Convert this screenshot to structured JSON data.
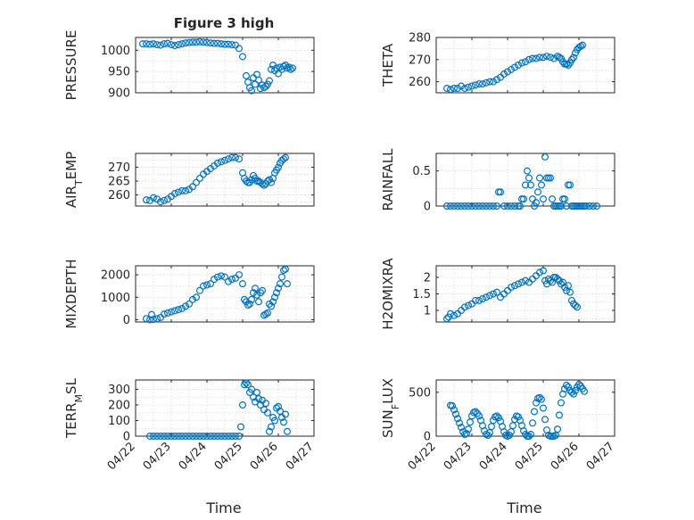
{
  "figure_title": "Figure 3 high",
  "colors": {
    "marker": "#0072BD",
    "axis": "#262626",
    "grid": "#d9d9d9",
    "background": "#ffffff"
  },
  "chart_data": [
    {
      "type": "scatter",
      "name": "pressure",
      "ylabel": "PRESSURE",
      "xlabel": "",
      "xlim": [
        0,
        5
      ],
      "ylim": [
        900,
        1030
      ],
      "yticks": [
        900,
        950,
        1000
      ],
      "xticks_visible": false,
      "x": [
        0.2,
        0.3,
        0.4,
        0.5,
        0.6,
        0.7,
        0.8,
        0.9,
        1.0,
        1.1,
        1.2,
        1.3,
        1.4,
        1.5,
        1.6,
        1.7,
        1.8,
        1.9,
        2.0,
        2.1,
        2.2,
        2.3,
        2.4,
        2.5,
        2.6,
        2.7,
        2.8,
        2.9,
        3.0,
        3.1,
        3.15,
        3.2,
        3.25,
        3.3,
        3.35,
        3.4,
        3.45,
        3.5,
        3.55,
        3.6,
        3.65,
        3.7,
        3.75,
        3.8,
        3.85,
        3.9,
        3.95,
        4.0,
        4.05,
        4.1,
        4.15,
        4.2,
        4.25,
        4.3,
        4.35,
        4.4
      ],
      "y": [
        1015,
        1015,
        1014,
        1015,
        1013,
        1012,
        1015,
        1016,
        1013,
        1011,
        1013,
        1015,
        1017,
        1018,
        1019,
        1019,
        1020,
        1019,
        1018,
        1017,
        1016,
        1016,
        1015,
        1014,
        1014,
        1013,
        1012,
        1004,
        985,
        940,
        925,
        912,
        905,
        935,
        920,
        943,
        930,
        910,
        918,
        912,
        915,
        920,
        928,
        955,
        965,
        952,
        958,
        945,
        960,
        955,
        962,
        965,
        958,
        960,
        955,
        958
      ]
    },
    {
      "type": "scatter",
      "name": "theta",
      "ylabel": "THETA",
      "xlabel": "",
      "xlim": [
        0,
        5
      ],
      "ylim": [
        255,
        280
      ],
      "yticks": [
        260,
        270,
        280
      ],
      "xticks_visible": false,
      "x": [
        0.3,
        0.4,
        0.5,
        0.6,
        0.7,
        0.8,
        0.9,
        1.0,
        1.1,
        1.2,
        1.3,
        1.4,
        1.5,
        1.6,
        1.7,
        1.8,
        1.9,
        2.0,
        2.1,
        2.2,
        2.3,
        2.4,
        2.5,
        2.6,
        2.7,
        2.8,
        2.9,
        3.0,
        3.1,
        3.2,
        3.3,
        3.4,
        3.45,
        3.5,
        3.55,
        3.6,
        3.65,
        3.7,
        3.75,
        3.8,
        3.85,
        3.9,
        3.95,
        4.0,
        4.05,
        4.1
      ],
      "y": [
        257,
        256.5,
        257,
        257,
        258,
        257,
        257.5,
        258,
        258.5,
        259,
        259,
        259.5,
        260,
        260,
        261,
        262,
        263.5,
        264.5,
        265.5,
        266.5,
        267.5,
        268.5,
        269,
        270,
        270.5,
        270.5,
        271,
        271,
        271.5,
        271,
        270.5,
        271.5,
        271,
        270.5,
        269,
        268,
        268,
        267.5,
        268.5,
        270,
        271,
        273,
        274.5,
        275.5,
        276,
        276.5
      ]
    },
    {
      "type": "scatter",
      "name": "air_temp",
      "ylabel": "AIR_TEMP",
      "xlabel": "",
      "xlim": [
        0,
        5
      ],
      "ylim": [
        256,
        275
      ],
      "yticks": [
        260,
        265,
        270
      ],
      "xticks_visible": false,
      "x": [
        0.3,
        0.4,
        0.5,
        0.6,
        0.7,
        0.8,
        0.9,
        1.0,
        1.1,
        1.2,
        1.3,
        1.4,
        1.5,
        1.6,
        1.7,
        1.8,
        1.9,
        2.0,
        2.1,
        2.2,
        2.3,
        2.4,
        2.5,
        2.6,
        2.7,
        2.8,
        2.9,
        3.0,
        3.05,
        3.1,
        3.15,
        3.2,
        3.25,
        3.3,
        3.35,
        3.4,
        3.45,
        3.5,
        3.55,
        3.6,
        3.65,
        3.7,
        3.75,
        3.8,
        3.85,
        3.9,
        3.95,
        4.0,
        4.05,
        4.1,
        4.15,
        4.2
      ],
      "y": [
        258.2,
        258,
        259,
        258.5,
        257.5,
        258,
        258.5,
        259.5,
        260.5,
        261,
        261.5,
        261.5,
        262,
        263,
        264.5,
        266,
        267.5,
        268.5,
        269.5,
        270.5,
        271.5,
        272,
        272.5,
        273,
        273.5,
        273.5,
        273,
        268,
        266,
        265,
        264.5,
        264.5,
        265.5,
        267,
        266,
        265,
        265,
        264.5,
        264,
        263.5,
        264,
        265,
        265.5,
        264.5,
        266,
        268,
        269,
        270,
        271.5,
        272.5,
        273,
        273.5
      ]
    },
    {
      "type": "scatter",
      "name": "rainfall",
      "ylabel": "RAINFALL",
      "xlabel": "",
      "xlim": [
        0,
        5
      ],
      "ylim": [
        0,
        0.75
      ],
      "yticks": [
        0,
        0.5
      ],
      "xticks_visible": false,
      "x": [
        0.3,
        0.4,
        0.5,
        0.6,
        0.7,
        0.8,
        0.9,
        1.0,
        1.1,
        1.2,
        1.3,
        1.4,
        1.5,
        1.6,
        1.7,
        1.75,
        1.8,
        1.9,
        2.0,
        2.1,
        2.2,
        2.3,
        2.35,
        2.4,
        2.45,
        2.5,
        2.55,
        2.6,
        2.65,
        2.7,
        2.75,
        2.8,
        2.85,
        2.9,
        2.95,
        3.0,
        3.05,
        3.1,
        3.15,
        3.2,
        3.25,
        3.3,
        3.35,
        3.4,
        3.45,
        3.5,
        3.55,
        3.6,
        3.65,
        3.7,
        3.75,
        3.8,
        3.85,
        3.9,
        3.95,
        4.0,
        4.05,
        4.1,
        4.15,
        4.2,
        4.3,
        4.4,
        4.5
      ],
      "y": [
        0,
        0,
        0,
        0,
        0,
        0,
        0,
        0,
        0,
        0,
        0,
        0,
        0,
        0,
        0,
        0.2,
        0.2,
        0,
        0,
        0,
        0,
        0,
        0,
        0.1,
        0.1,
        0.3,
        0.5,
        0.4,
        0.3,
        0.1,
        0,
        0.05,
        0.2,
        0.4,
        0.3,
        0.1,
        0.7,
        0.4,
        0.4,
        0.4,
        0.1,
        0,
        0,
        0,
        0,
        0,
        0.1,
        0.1,
        0,
        0.3,
        0.3,
        0,
        0,
        0,
        0,
        0,
        0,
        0,
        0,
        0,
        0,
        0,
        0
      ]
    },
    {
      "type": "scatter",
      "name": "mixdepth",
      "ylabel": "MIXDEPTH",
      "xlabel": "",
      "xlim": [
        0,
        5
      ],
      "ylim": [
        -100,
        2400
      ],
      "yticks": [
        0,
        1000,
        2000
      ],
      "xticks_visible": false,
      "x": [
        0.3,
        0.4,
        0.45,
        0.5,
        0.6,
        0.7,
        0.8,
        0.9,
        1.0,
        1.1,
        1.2,
        1.3,
        1.4,
        1.5,
        1.6,
        1.7,
        1.8,
        1.9,
        2.0,
        2.1,
        2.2,
        2.3,
        2.4,
        2.5,
        2.6,
        2.7,
        2.8,
        2.9,
        3.0,
        3.05,
        3.1,
        3.15,
        3.2,
        3.25,
        3.3,
        3.35,
        3.4,
        3.45,
        3.5,
        3.55,
        3.6,
        3.65,
        3.7,
        3.75,
        3.8,
        3.85,
        3.9,
        3.95,
        4.0,
        4.05,
        4.1,
        4.15,
        4.2,
        4.25
      ],
      "y": [
        50,
        0,
        230,
        10,
        50,
        100,
        250,
        300,
        350,
        400,
        450,
        500,
        600,
        700,
        900,
        1000,
        1300,
        1500,
        1550,
        1600,
        1800,
        1900,
        1950,
        1900,
        1700,
        1800,
        1850,
        2000,
        1600,
        900,
        800,
        650,
        700,
        900,
        1200,
        1400,
        1100,
        800,
        1200,
        1300,
        200,
        250,
        300,
        700,
        600,
        800,
        1000,
        1200,
        1400,
        1600,
        1900,
        2200,
        2250,
        1600
      ]
    },
    {
      "type": "scatter",
      "name": "h2omixra",
      "ylabel": "H2OMIXRA",
      "xlabel": "",
      "xlim": [
        0,
        5
      ],
      "ylim": [
        0.65,
        2.35
      ],
      "yticks": [
        1,
        1.5,
        2
      ],
      "xticks_visible": false,
      "x": [
        0.3,
        0.35,
        0.4,
        0.5,
        0.6,
        0.7,
        0.8,
        0.9,
        1.0,
        1.1,
        1.2,
        1.3,
        1.4,
        1.5,
        1.6,
        1.7,
        1.8,
        1.9,
        2.0,
        2.1,
        2.2,
        2.3,
        2.4,
        2.5,
        2.6,
        2.7,
        2.8,
        2.9,
        3.0,
        3.05,
        3.1,
        3.15,
        3.2,
        3.25,
        3.3,
        3.35,
        3.4,
        3.45,
        3.5,
        3.55,
        3.6,
        3.65,
        3.7,
        3.75,
        3.8,
        3.85,
        3.9,
        3.95
      ],
      "y": [
        0.75,
        0.8,
        0.9,
        0.85,
        0.9,
        1.0,
        1.1,
        1.15,
        1.2,
        1.3,
        1.3,
        1.35,
        1.4,
        1.45,
        1.5,
        1.55,
        1.4,
        1.5,
        1.6,
        1.7,
        1.75,
        1.8,
        1.85,
        1.9,
        1.85,
        1.95,
        2.05,
        2.15,
        2.2,
        1.9,
        1.8,
        1.95,
        1.9,
        1.85,
        2.0,
        2.0,
        1.95,
        1.9,
        1.8,
        1.85,
        1.7,
        1.6,
        1.75,
        1.55,
        1.3,
        1.2,
        1.15,
        1.1
      ]
    },
    {
      "type": "scatter",
      "name": "terr_msl",
      "ylabel": "TERR_MSL",
      "xlabel": "Time",
      "xlim": [
        0,
        5
      ],
      "ylim": [
        0,
        360
      ],
      "yticks": [
        0,
        100,
        200,
        300
      ],
      "xticks": [
        0,
        1,
        2,
        3,
        4,
        5
      ],
      "xticklabels": [
        "04/22",
        "04/23",
        "04/24",
        "04/25",
        "04/26",
        "04/27"
      ],
      "x": [
        0.4,
        0.5,
        0.6,
        0.7,
        0.8,
        0.9,
        1.0,
        1.1,
        1.2,
        1.3,
        1.4,
        1.5,
        1.6,
        1.7,
        1.8,
        1.9,
        2.0,
        2.1,
        2.2,
        2.3,
        2.4,
        2.5,
        2.6,
        2.7,
        2.8,
        2.9,
        2.95,
        3.0,
        3.05,
        3.1,
        3.15,
        3.2,
        3.25,
        3.3,
        3.35,
        3.4,
        3.45,
        3.5,
        3.55,
        3.6,
        3.65,
        3.7,
        3.75,
        3.8,
        3.85,
        3.9,
        3.95,
        4.0,
        4.05,
        4.1,
        4.15,
        4.2,
        4.25
      ],
      "y": [
        0,
        0,
        0,
        0,
        0,
        0,
        0,
        0,
        0,
        0,
        0,
        0,
        0,
        0,
        0,
        0,
        0,
        0,
        0,
        0,
        0,
        0,
        0,
        0,
        0,
        0,
        60,
        200,
        330,
        340,
        330,
        280,
        300,
        250,
        220,
        280,
        240,
        200,
        230,
        170,
        210,
        150,
        30,
        60,
        120,
        100,
        180,
        190,
        160,
        120,
        90,
        140,
        30
      ]
    },
    {
      "type": "scatter",
      "name": "sun_flux",
      "ylabel": "SUN_FLUX",
      "xlabel": "Time",
      "xlim": [
        0,
        5
      ],
      "ylim": [
        0,
        640
      ],
      "yticks": [
        0,
        500
      ],
      "xticks": [
        0,
        1,
        2,
        3,
        4,
        5
      ],
      "xticklabels": [
        "04/22",
        "04/23",
        "04/24",
        "04/25",
        "04/26",
        "04/27"
      ],
      "x": [
        0.4,
        0.45,
        0.5,
        0.55,
        0.6,
        0.65,
        0.7,
        0.75,
        0.8,
        0.85,
        0.9,
        0.95,
        1.0,
        1.05,
        1.1,
        1.15,
        1.2,
        1.25,
        1.3,
        1.35,
        1.4,
        1.45,
        1.5,
        1.55,
        1.6,
        1.65,
        1.7,
        1.75,
        1.8,
        1.85,
        1.9,
        1.95,
        2.0,
        2.05,
        2.1,
        2.15,
        2.2,
        2.25,
        2.3,
        2.35,
        2.4,
        2.45,
        2.5,
        2.55,
        2.6,
        2.65,
        2.7,
        2.75,
        2.8,
        2.85,
        2.9,
        2.95,
        3.0,
        3.05,
        3.1,
        3.15,
        3.2,
        3.25,
        3.3,
        3.35,
        3.4,
        3.45,
        3.5,
        3.55,
        3.6,
        3.65,
        3.7,
        3.75,
        3.8,
        3.85,
        3.9,
        3.95,
        4.0,
        4.05,
        4.1,
        4.15
      ],
      "y": [
        350,
        345,
        300,
        250,
        200,
        150,
        100,
        50,
        20,
        30,
        80,
        160,
        230,
        270,
        280,
        260,
        230,
        180,
        120,
        60,
        20,
        10,
        40,
        110,
        180,
        220,
        230,
        210,
        170,
        110,
        50,
        10,
        0,
        10,
        50,
        120,
        190,
        230,
        220,
        180,
        120,
        60,
        20,
        0,
        0,
        20,
        150,
        280,
        380,
        430,
        440,
        420,
        320,
        190,
        70,
        10,
        0,
        0,
        0,
        10,
        80,
        240,
        380,
        480,
        540,
        580,
        560,
        520,
        500,
        480,
        520,
        560,
        590,
        570,
        540,
        510
      ]
    }
  ]
}
